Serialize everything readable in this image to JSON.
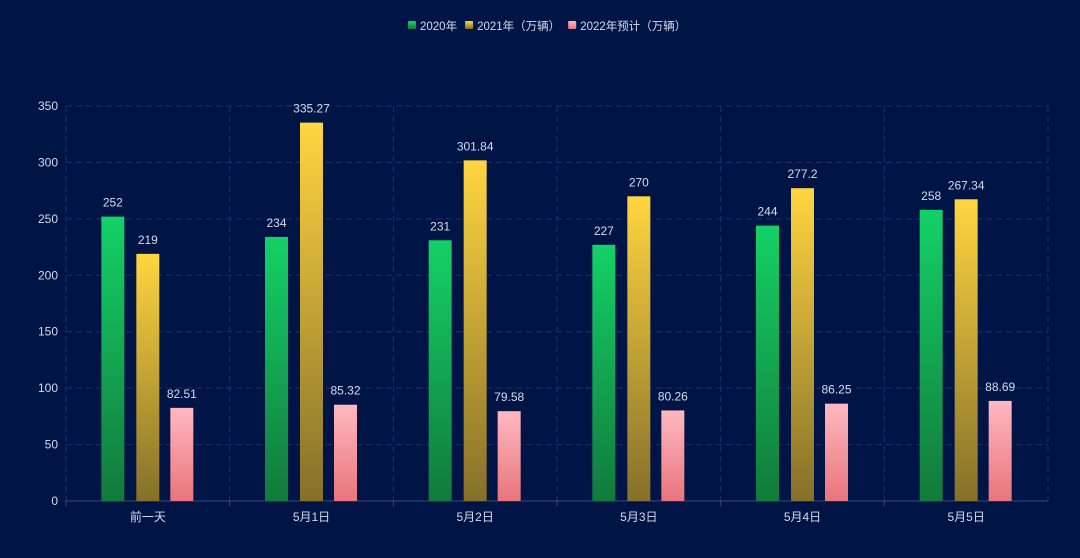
{
  "chart_data": {
    "type": "bar",
    "title": "",
    "xlabel": "",
    "ylabel": "",
    "ylim": [
      0,
      350
    ],
    "yticks": [
      0,
      50,
      100,
      150,
      200,
      250,
      300,
      350
    ],
    "grid": true,
    "legend_position": "top-center",
    "categories": [
      "前一天",
      "5月1日",
      "5月2日",
      "5月3日",
      "5月4日",
      "5月5日"
    ],
    "series": [
      {
        "name": "2020年",
        "values": [
          252,
          234,
          231,
          227,
          244,
          258
        ],
        "labels": [
          "252",
          "234",
          "231",
          "227",
          "244",
          "258"
        ],
        "color_top": "#14d166",
        "color_bottom": "#127a3c"
      },
      {
        "name": "2021年（万辆）",
        "values": [
          219,
          335.27,
          301.84,
          270,
          277.2,
          267.34
        ],
        "labels": [
          "219",
          "335.27",
          "301.84",
          "270",
          "277.2",
          "267.34"
        ],
        "color_top": "#ffd540",
        "color_bottom": "#85702a"
      },
      {
        "name": "2022年预计（万辆）",
        "values": [
          82.51,
          85.32,
          79.58,
          80.26,
          86.25,
          88.69
        ],
        "labels": [
          "82.51",
          "85.32",
          "79.58",
          "80.26",
          "86.25",
          "88.69"
        ],
        "color_top": "#ffb8c0",
        "color_bottom": "#e9747c"
      }
    ]
  }
}
